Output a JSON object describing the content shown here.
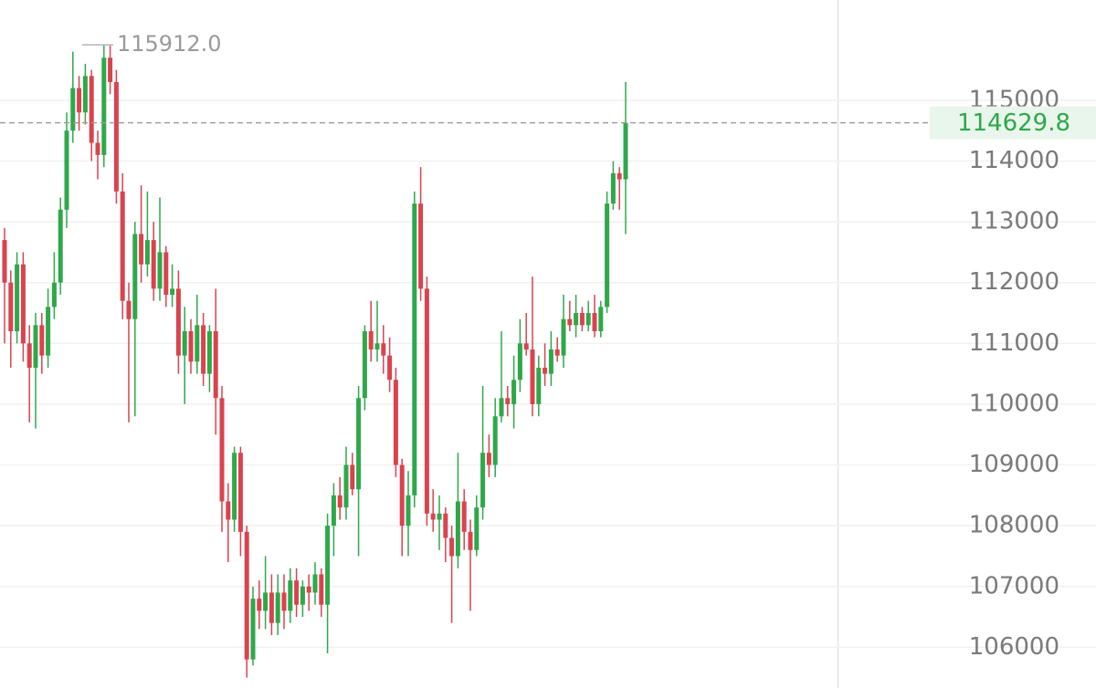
{
  "chart_data": {
    "type": "candlestick",
    "up_color": "#2ea84a",
    "down_color": "#d9434f",
    "ylim": [
      105330,
      116650
    ],
    "yticks": [
      106000,
      107000,
      108000,
      109000,
      110000,
      111000,
      112000,
      113000,
      114000,
      115000
    ],
    "grid": true,
    "high_annotation": {
      "value": 115912,
      "label": "115912.0"
    },
    "last_price": 114629.8,
    "candles": [
      [
        112700,
        112900,
        111000,
        112000
      ],
      [
        112000,
        112200,
        110600,
        111200
      ],
      [
        111200,
        112500,
        111000,
        112300
      ],
      [
        112300,
        112500,
        110700,
        111000
      ],
      [
        111000,
        111300,
        109700,
        110600
      ],
      [
        110600,
        111500,
        109600,
        111300
      ],
      [
        111300,
        111500,
        110500,
        110800
      ],
      [
        110800,
        111900,
        110600,
        111600
      ],
      [
        111600,
        112500,
        111400,
        112000
      ],
      [
        112000,
        113400,
        111800,
        113200
      ],
      [
        113200,
        114800,
        112900,
        114500
      ],
      [
        114500,
        115800,
        114300,
        115200
      ],
      [
        115200,
        115400,
        114500,
        114800
      ],
      [
        114800,
        115600,
        114600,
        115400
      ],
      [
        115400,
        115500,
        114000,
        114300
      ],
      [
        114300,
        114500,
        113700,
        114100
      ],
      [
        114100,
        115912,
        113900,
        115700
      ],
      [
        115700,
        115900,
        115100,
        115300
      ],
      [
        115300,
        115500,
        113300,
        113500
      ],
      [
        113500,
        113800,
        111400,
        111700
      ],
      [
        111700,
        112000,
        109700,
        111400
      ],
      [
        111400,
        113000,
        109800,
        112800
      ],
      [
        112800,
        113600,
        112000,
        112300
      ],
      [
        112300,
        113500,
        112100,
        112700
      ],
      [
        112700,
        113000,
        111700,
        111900
      ],
      [
        111900,
        113400,
        111700,
        112500
      ],
      [
        112500,
        112600,
        111600,
        111800
      ],
      [
        111800,
        112300,
        111600,
        111900
      ],
      [
        111900,
        112200,
        110500,
        110800
      ],
      [
        110800,
        111600,
        110000,
        111200
      ],
      [
        111200,
        111400,
        110500,
        110700
      ],
      [
        110700,
        111800,
        110500,
        111300
      ],
      [
        111300,
        111500,
        110300,
        110500
      ],
      [
        110500,
        111300,
        110200,
        111200
      ],
      [
        111200,
        111900,
        109500,
        110100
      ],
      [
        110100,
        110300,
        107900,
        108400
      ],
      [
        108400,
        108700,
        107400,
        108100
      ],
      [
        108100,
        109300,
        107900,
        109200
      ],
      [
        109200,
        109300,
        107500,
        107900
      ],
      [
        107900,
        108000,
        105500,
        105800
      ],
      [
        105800,
        107000,
        105700,
        106800
      ],
      [
        106800,
        107100,
        106300,
        106600
      ],
      [
        106600,
        107500,
        106300,
        106900
      ],
      [
        106900,
        107200,
        106200,
        106400
      ],
      [
        106400,
        107200,
        106200,
        106900
      ],
      [
        106900,
        107200,
        106300,
        106600
      ],
      [
        106600,
        107300,
        106400,
        107100
      ],
      [
        107100,
        107300,
        106500,
        106700
      ],
      [
        106700,
        107100,
        106500,
        107000
      ],
      [
        107000,
        107200,
        106600,
        106900
      ],
      [
        106900,
        107400,
        106700,
        107200
      ],
      [
        107200,
        107300,
        106500,
        106700
      ],
      [
        106700,
        108200,
        105900,
        108000
      ],
      [
        108000,
        108700,
        107500,
        108500
      ],
      [
        108500,
        108800,
        108100,
        108300
      ],
      [
        108300,
        109300,
        108100,
        109000
      ],
      [
        109000,
        109200,
        108500,
        108600
      ],
      [
        108600,
        110300,
        107500,
        110100
      ],
      [
        110100,
        111300,
        109900,
        111200
      ],
      [
        111200,
        111700,
        110700,
        110900
      ],
      [
        110900,
        111700,
        110700,
        111000
      ],
      [
        111000,
        111300,
        110500,
        110800
      ],
      [
        110800,
        111100,
        110200,
        110400
      ],
      [
        110400,
        110600,
        108800,
        109000
      ],
      [
        109000,
        109100,
        107500,
        108000
      ],
      [
        108000,
        108900,
        107500,
        108500
      ],
      [
        108500,
        113500,
        108300,
        113300
      ],
      [
        113300,
        113900,
        111700,
        111900
      ],
      [
        111900,
        112100,
        108000,
        108200
      ],
      [
        108200,
        108600,
        107900,
        108100
      ],
      [
        108100,
        108500,
        107600,
        108200
      ],
      [
        108200,
        108300,
        107400,
        107800
      ],
      [
        107800,
        108000,
        106400,
        107500
      ],
      [
        107500,
        109200,
        107300,
        108400
      ],
      [
        108400,
        108600,
        107600,
        107900
      ],
      [
        107900,
        108100,
        106600,
        107600
      ],
      [
        107600,
        108500,
        107500,
        108300
      ],
      [
        108300,
        110300,
        108100,
        109200
      ],
      [
        109200,
        109500,
        108800,
        109000
      ],
      [
        109000,
        110100,
        108800,
        109800
      ],
      [
        109800,
        111200,
        109700,
        110100
      ],
      [
        110100,
        110300,
        109800,
        110000
      ],
      [
        110000,
        110800,
        109600,
        110400
      ],
      [
        110400,
        111400,
        110200,
        111000
      ],
      [
        111000,
        111500,
        110800,
        110900
      ],
      [
        110900,
        112100,
        109800,
        110000
      ],
      [
        110000,
        110800,
        109800,
        110600
      ],
      [
        110600,
        111000,
        110300,
        110500
      ],
      [
        110500,
        111200,
        110300,
        110900
      ],
      [
        110900,
        111100,
        110700,
        110800
      ],
      [
        110800,
        111800,
        110600,
        111400
      ],
      [
        111400,
        111700,
        111200,
        111300
      ],
      [
        111300,
        111800,
        111100,
        111500
      ],
      [
        111500,
        111600,
        111200,
        111300
      ],
      [
        111300,
        111700,
        111200,
        111500
      ],
      [
        111500,
        111800,
        111100,
        111200
      ],
      [
        111200,
        111700,
        111100,
        111600
      ],
      [
        111600,
        113500,
        111500,
        113300
      ],
      [
        113300,
        114000,
        113200,
        113800
      ],
      [
        113800,
        113900,
        113200,
        113700
      ],
      [
        113700,
        115300,
        112800,
        114629.8
      ]
    ]
  }
}
